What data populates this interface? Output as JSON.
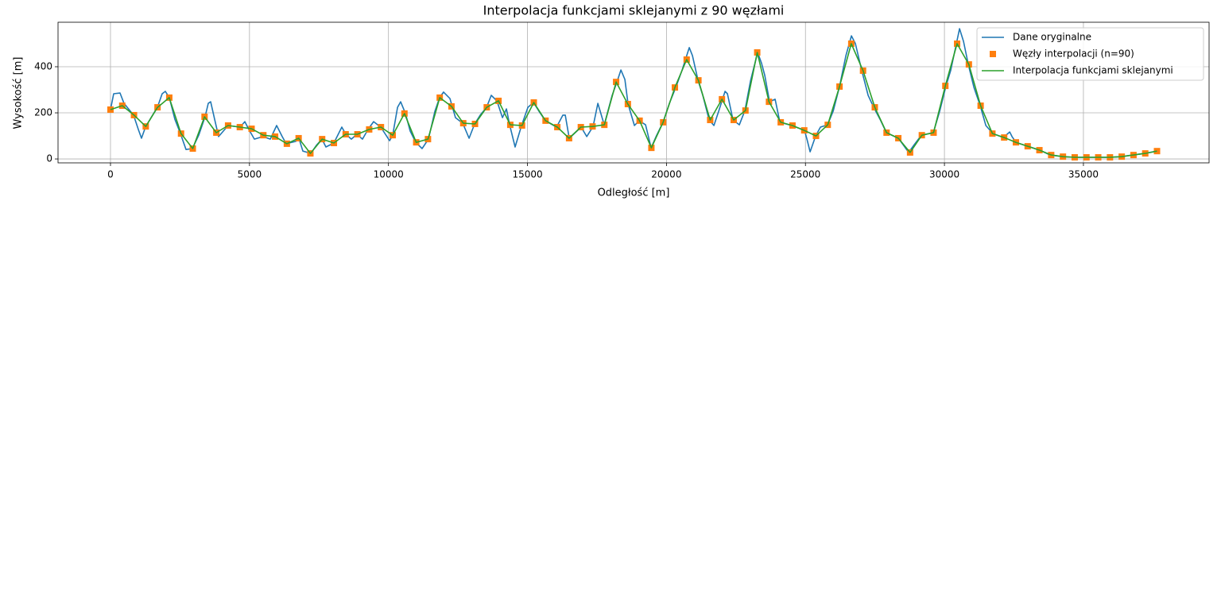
{
  "chart_data": {
    "type": "line",
    "title": "Interpolacja funkcjami sklejanymi z 90 węzłami",
    "x_label": "Odległość [m]",
    "y_label": "Wysokość [m]",
    "xlim": [
      -1887,
      39520
    ],
    "ylim": [
      -17,
      593
    ],
    "xticks": [
      0,
      5000,
      10000,
      15000,
      20000,
      25000,
      30000,
      35000
    ],
    "yticks": [
      0,
      200,
      400
    ],
    "grid": true,
    "legend": "upper right",
    "series": [
      {
        "name": "Dane oryginalne",
        "color": "#1f77b4",
        "mode": "line",
        "x": [
          0,
          114,
          343,
          486,
          829,
          1001,
          1115,
          1258,
          1459,
          1687,
          1859,
          1973,
          2116,
          2317,
          2517,
          2717,
          2946,
          3175,
          3403,
          3518,
          3604,
          3747,
          3890,
          4233,
          4662,
          4833,
          4976,
          5177,
          5491,
          5749,
          5977,
          6178,
          6321,
          6664,
          6778,
          6921,
          7207,
          7407,
          7608,
          7751,
          8037,
          8323,
          8466,
          8666,
          8866,
          9066,
          9266,
          9467,
          9724,
          10039,
          10153,
          10325,
          10439,
          10611,
          10782,
          10982,
          11211,
          11440,
          11669,
          11840,
          11983,
          12212,
          12412,
          12670,
          12899,
          13099,
          13299,
          13528,
          13699,
          13900,
          14100,
          14243,
          14357,
          14557,
          14786,
          15015,
          15215,
          15415,
          15644,
          16045,
          16273,
          16359,
          16502,
          16931,
          17131,
          17360,
          17532,
          17761,
          18047,
          18218,
          18361,
          18504,
          18619,
          18847,
          19019,
          19248,
          19448,
          19648,
          19877,
          20106,
          20335,
          20563,
          20821,
          20935,
          21135,
          21307,
          21536,
          21707,
          21879,
          22108,
          22194,
          22394,
          22623,
          22823,
          23023,
          23280,
          23423,
          23538,
          23709,
          23910,
          24081,
          24510,
          24968,
          25054,
          25168,
          25368,
          25540,
          25797,
          25997,
          26226,
          26455,
          26655,
          26798,
          27027,
          27256,
          27456,
          27685,
          27914,
          28343,
          28514,
          28714,
          28915,
          29172,
          29601,
          29830,
          30059,
          30230,
          30430,
          30545,
          30688,
          30859,
          31060,
          31288,
          31489,
          31746,
          32118,
          32347,
          32432,
          32575,
          33004,
          33433,
          33805,
          34263,
          34692,
          35121,
          35521,
          35950,
          36351,
          36780,
          37209,
          37638
        ],
        "values": [
          214,
          283,
          286,
          241,
          190,
          128,
          90,
          138,
          179,
          224,
          283,
          293,
          266,
          172,
          110,
          41,
          45,
          103,
          183,
          241,
          248,
          172,
          97,
          145,
          138,
          162,
          128,
          86,
          97,
          86,
          145,
          97,
          66,
          76,
          90,
          34,
          24,
          59,
          86,
          52,
          69,
          138,
          107,
          86,
          107,
          86,
          128,
          162,
          138,
          79,
          103,
          224,
          248,
          197,
          121,
          72,
          45,
          86,
          207,
          266,
          290,
          262,
          179,
          155,
          90,
          152,
          190,
          224,
          276,
          252,
          179,
          217,
          148,
          52,
          145,
          224,
          245,
          207,
          166,
          138,
          190,
          190,
          90,
          138,
          97,
          141,
          241,
          148,
          276,
          334,
          386,
          345,
          238,
          145,
          166,
          148,
          48,
          103,
          159,
          241,
          310,
          386,
          483,
          448,
          341,
          276,
          169,
          145,
          207,
          293,
          283,
          169,
          148,
          210,
          338,
          462,
          414,
          362,
          248,
          259,
          159,
          145,
          124,
          86,
          31,
          100,
          138,
          148,
          207,
          314,
          448,
          534,
          500,
          383,
          276,
          224,
          172,
          114,
          90,
          62,
          28,
          62,
          103,
          114,
          207,
          317,
          386,
          500,
          565,
          510,
          410,
          310,
          231,
          145,
          110,
          93,
          117,
          97,
          72,
          55,
          38,
          17,
          10,
          7,
          7,
          7,
          7,
          10,
          17,
          24,
          34
        ]
      },
      {
        "name": "Węzły interpolacji (n=90)",
        "color": "#ff7f0e",
        "mode": "markers",
        "x": [
          0,
          423,
          846,
          1269,
          1692,
          2115,
          2538,
          2961,
          3384,
          3807,
          4230,
          4653,
          5076,
          5499,
          5922,
          6345,
          6768,
          7191,
          7614,
          8037,
          8460,
          8883,
          9306,
          9729,
          10152,
          10575,
          10998,
          11421,
          11844,
          12267,
          12690,
          13113,
          13536,
          13959,
          14382,
          14805,
          15228,
          15651,
          16074,
          16497,
          16920,
          17343,
          17766,
          18189,
          18612,
          19035,
          19458,
          19881,
          20304,
          20727,
          21150,
          21573,
          21996,
          22419,
          22842,
          23265,
          23688,
          24111,
          24534,
          24957,
          25380,
          25803,
          26226,
          26649,
          27072,
          27495,
          27918,
          28341,
          28764,
          29187,
          29610,
          30033,
          30456,
          30879,
          31302,
          31725,
          32148,
          32571,
          32994,
          33417,
          33840,
          34263,
          34686,
          35109,
          35532,
          35955,
          36378,
          36801,
          37224,
          37647
        ],
        "values": [
          214,
          231,
          190,
          141,
          224,
          266,
          110,
          45,
          183,
          114,
          145,
          138,
          131,
          103,
          97,
          66,
          90,
          24,
          86,
          69,
          107,
          107,
          128,
          138,
          103,
          197,
          72,
          86,
          266,
          228,
          155,
          152,
          224,
          252,
          148,
          145,
          245,
          166,
          138,
          90,
          138,
          141,
          148,
          334,
          238,
          166,
          48,
          159,
          310,
          431,
          341,
          169,
          259,
          169,
          210,
          462,
          248,
          159,
          145,
          124,
          100,
          148,
          314,
          500,
          383,
          224,
          114,
          90,
          28,
          103,
          114,
          317,
          500,
          410,
          231,
          110,
          93,
          72,
          55,
          38,
          17,
          10,
          7,
          7,
          7,
          7,
          10,
          17,
          24,
          34
        ]
      },
      {
        "name": "Interpolacja funkcjami sklejanymi",
        "color": "#2ca02c",
        "mode": "line",
        "x": [
          0,
          423,
          846,
          1269,
          1692,
          2115,
          2538,
          2961,
          3384,
          3807,
          4230,
          4653,
          5076,
          5499,
          5922,
          6345,
          6768,
          7191,
          7614,
          8037,
          8460,
          8883,
          9306,
          9729,
          10152,
          10575,
          10998,
          11421,
          11844,
          12267,
          12690,
          13113,
          13536,
          13959,
          14382,
          14805,
          15228,
          15651,
          16074,
          16497,
          16920,
          17343,
          17766,
          18189,
          18612,
          19035,
          19458,
          19881,
          20304,
          20727,
          21150,
          21573,
          21996,
          22419,
          22842,
          23265,
          23688,
          24111,
          24534,
          24957,
          25380,
          25803,
          26226,
          26649,
          27072,
          27495,
          27918,
          28341,
          28764,
          29187,
          29610,
          30033,
          30456,
          30879,
          31302,
          31725,
          32148,
          32571,
          32994,
          33417,
          33840,
          34263,
          34686,
          35109,
          35532,
          35955,
          36378,
          36801,
          37224,
          37647
        ],
        "values": [
          214,
          231,
          190,
          141,
          224,
          266,
          110,
          45,
          183,
          114,
          145,
          138,
          131,
          103,
          97,
          66,
          90,
          24,
          86,
          69,
          107,
          107,
          128,
          138,
          103,
          197,
          72,
          86,
          266,
          228,
          155,
          152,
          224,
          252,
          148,
          145,
          245,
          166,
          138,
          90,
          138,
          141,
          148,
          334,
          238,
          166,
          48,
          159,
          310,
          431,
          341,
          169,
          259,
          169,
          210,
          462,
          248,
          159,
          145,
          124,
          100,
          148,
          314,
          500,
          383,
          224,
          114,
          90,
          28,
          103,
          114,
          317,
          500,
          410,
          231,
          110,
          93,
          72,
          55,
          38,
          17,
          10,
          7,
          7,
          7,
          7,
          10,
          17,
          24,
          34
        ]
      }
    ]
  }
}
